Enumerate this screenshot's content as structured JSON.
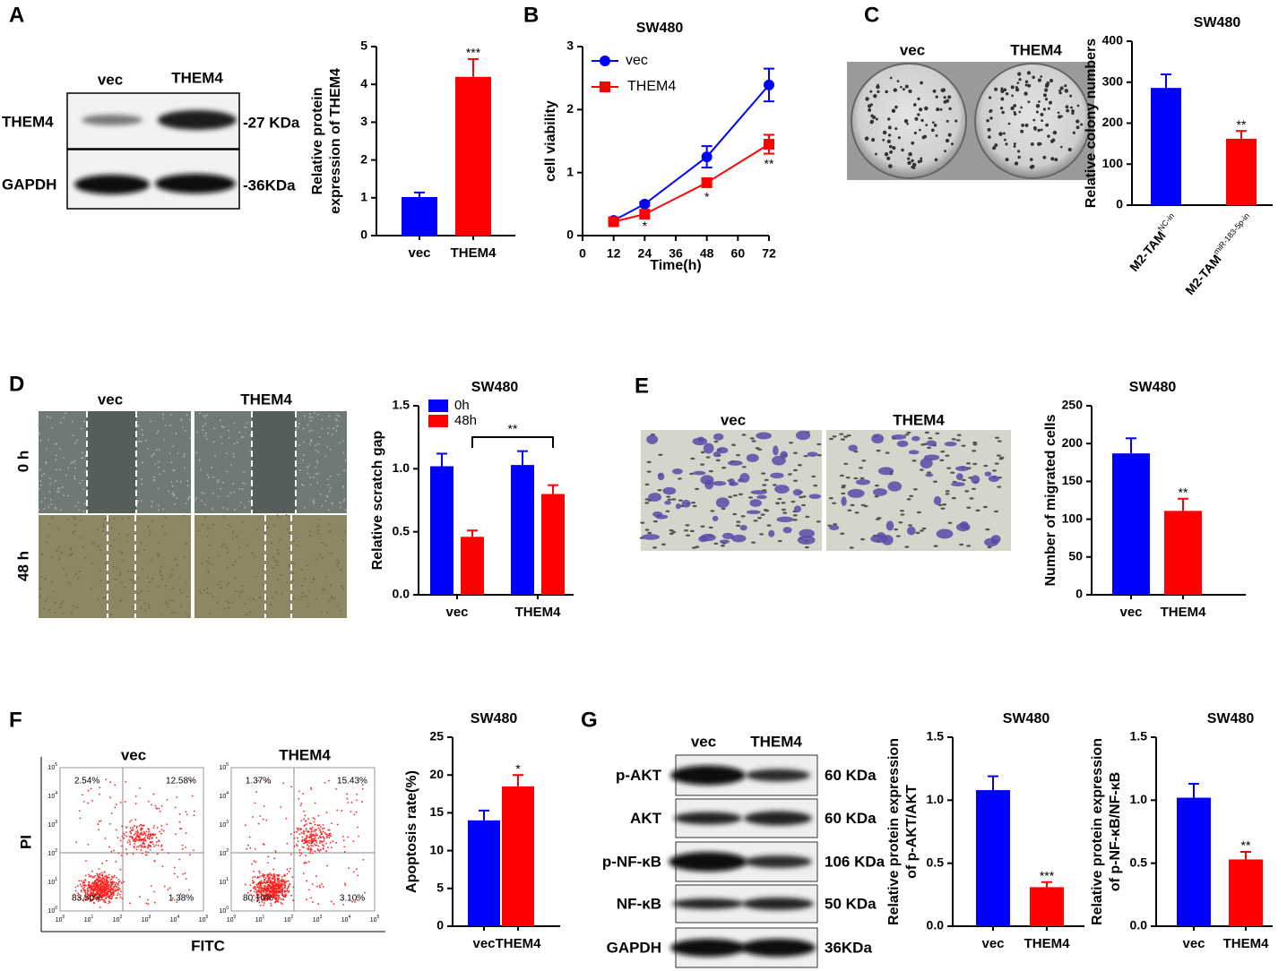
{
  "panel_labels": [
    "A",
    "B",
    "C",
    "D",
    "E",
    "F",
    "G"
  ],
  "blot_a": {
    "lanes": [
      "vec",
      "THEM4"
    ],
    "rows": [
      {
        "protein": "THEM4",
        "size": "-27 KDa"
      },
      {
        "protein": "GAPDH",
        "size": "-36KDa"
      }
    ]
  },
  "colony": {
    "lanes": [
      "vec",
      "THEM4"
    ]
  },
  "scratch": {
    "lanes": [
      "vec",
      "THEM4"
    ],
    "times": [
      "0 h",
      "48 h"
    ]
  },
  "transwell": {
    "lanes": [
      "vec",
      "THEM4"
    ]
  },
  "flow": {
    "lanes": [
      "vec",
      "THEM4"
    ],
    "ylabel": "PI",
    "xlabel": "FITC",
    "tick_base": "10",
    "tick_exponents": [
      "0",
      "1",
      "2",
      "3",
      "4",
      "5"
    ],
    "quadrants": [
      [
        "2.54%",
        "12.58%",
        "83.50%",
        "1.38%"
      ],
      [
        "1.37%",
        "15.43%",
        "80.10%",
        "3.10%"
      ]
    ]
  },
  "blot_g": {
    "lanes": [
      "vec",
      "THEM4"
    ],
    "rows": [
      {
        "protein": "p-AKT",
        "size": "60 KDa"
      },
      {
        "protein": "AKT",
        "size": "60 KDa"
      },
      {
        "protein": "p-NF-κB",
        "size": "106 KDa"
      },
      {
        "protein": "NF-κB",
        "size": "50 KDa"
      },
      {
        "protein": "GAPDH",
        "size": "36KDa"
      }
    ]
  },
  "chart_data": [
    {
      "type": "bar",
      "ylabel": [
        "Relative protein",
        "expression of THEM4"
      ],
      "categories": [
        "vec",
        "THEM4"
      ],
      "values": [
        1.02,
        4.2
      ],
      "errors": [
        0.12,
        0.47
      ],
      "colors": [
        "#0000ff",
        "#ff0000"
      ],
      "significance": [
        null,
        "***"
      ],
      "ylim": [
        0,
        5
      ],
      "yticks": [
        0,
        1,
        2,
        3,
        4,
        5
      ]
    },
    {
      "type": "line",
      "title": "SW480",
      "xlabel": "Time(h)",
      "ylabel": [
        "cell viability"
      ],
      "x": [
        12,
        24,
        48,
        72
      ],
      "xlim": [
        0,
        72
      ],
      "xticks": [
        0,
        12,
        24,
        36,
        48,
        60,
        72
      ],
      "ylim": [
        0,
        3
      ],
      "yticks": [
        0,
        1,
        2,
        3
      ],
      "legend": "upper left",
      "series": [
        {
          "name": "vec",
          "color": "#0000ff",
          "marker": "circle",
          "values": [
            0.24,
            0.5,
            1.25,
            2.39
          ],
          "errors": [
            0.03,
            0.03,
            0.17,
            0.26
          ]
        },
        {
          "name": "THEM4",
          "color": "#ff0000",
          "marker": "square",
          "values": [
            0.22,
            0.34,
            0.84,
            1.45
          ],
          "errors": [
            0.03,
            0.03,
            0.07,
            0.15
          ],
          "significance": [
            null,
            "*",
            "*",
            "**"
          ]
        }
      ]
    },
    {
      "type": "bar",
      "title": "SW480",
      "ylabel": [
        "Relative colony numbers"
      ],
      "categories": [
        "M2-TAM",
        "M2-TAM"
      ],
      "category_superscripts": [
        "NC-in",
        "miR-183-5p-in"
      ],
      "values": [
        286,
        162
      ],
      "errors": [
        33,
        19
      ],
      "colors": [
        "#0000ff",
        "#ff0000"
      ],
      "significance": [
        null,
        "**"
      ],
      "ylim": [
        0,
        400
      ],
      "yticks": [
        0,
        100,
        200,
        300,
        400
      ]
    },
    {
      "type": "bar",
      "title": "SW480",
      "ylabel": [
        "Relative scratch gap"
      ],
      "categories": [
        "vec",
        "THEM4"
      ],
      "legend": "upper left",
      "bracket_label": "**",
      "series": [
        {
          "name": "0h",
          "color": "#0000ff",
          "values": [
            1.02,
            1.03
          ],
          "errors": [
            0.1,
            0.11
          ]
        },
        {
          "name": "48h",
          "color": "#ff0000",
          "values": [
            0.46,
            0.8
          ],
          "errors": [
            0.05,
            0.07
          ]
        }
      ],
      "ylim": [
        0,
        1.5
      ],
      "yticks": [
        {
          "value": 0,
          "label": "0.0"
        },
        0.5,
        {
          "value": 1,
          "label": "1.0"
        },
        1.5
      ]
    },
    {
      "type": "bar",
      "title": "SW480",
      "ylabel": [
        "Number of migrated cells"
      ],
      "categories": [
        "vec",
        "THEM4"
      ],
      "values": [
        187,
        111
      ],
      "errors": [
        20,
        16
      ],
      "colors": [
        "#0000ff",
        "#ff0000"
      ],
      "significance": [
        null,
        "**"
      ],
      "ylim": [
        0,
        250
      ],
      "yticks": [
        0,
        50,
        100,
        150,
        200,
        250
      ]
    },
    {
      "type": "bar",
      "title": "SW480",
      "ylabel": [
        "Apoptosis rate(%)"
      ],
      "categories": [
        "vec",
        "THEM4"
      ],
      "values": [
        14.0,
        18.5
      ],
      "errors": [
        1.3,
        1.5
      ],
      "colors": [
        "#0000ff",
        "#ff0000"
      ],
      "significance": [
        null,
        "*"
      ],
      "ylim": [
        0,
        25
      ],
      "yticks": [
        0,
        5,
        10,
        15,
        20,
        25
      ]
    },
    {
      "type": "bar",
      "title": "SW480",
      "ylabel": [
        "Relative protein expression",
        "of p-AKT/AKT"
      ],
      "categories": [
        "vec",
        "THEM4"
      ],
      "values": [
        1.08,
        0.31
      ],
      "errors": [
        0.11,
        0.04
      ],
      "colors": [
        "#0000ff",
        "#ff0000"
      ],
      "significance": [
        null,
        "***"
      ],
      "ylim": [
        0,
        1.5
      ],
      "yticks": [
        {
          "value": 0,
          "label": "0.0"
        },
        0.5,
        {
          "value": 1,
          "label": "1.0"
        },
        1.5
      ]
    },
    {
      "type": "bar",
      "title": "SW480",
      "ylabel": [
        "Relative protein expression",
        "of p-NF-κB/NF-κB"
      ],
      "categories": [
        "vec",
        "THEM4"
      ],
      "values": [
        1.02,
        0.53
      ],
      "errors": [
        0.11,
        0.06
      ],
      "colors": [
        "#0000ff",
        "#ff0000"
      ],
      "significance": [
        null,
        "**"
      ],
      "ylim": [
        0,
        1.5
      ],
      "yticks": [
        {
          "value": 0,
          "label": "0.0"
        },
        0.5,
        {
          "value": 1,
          "label": "1.0"
        },
        1.5
      ]
    }
  ]
}
